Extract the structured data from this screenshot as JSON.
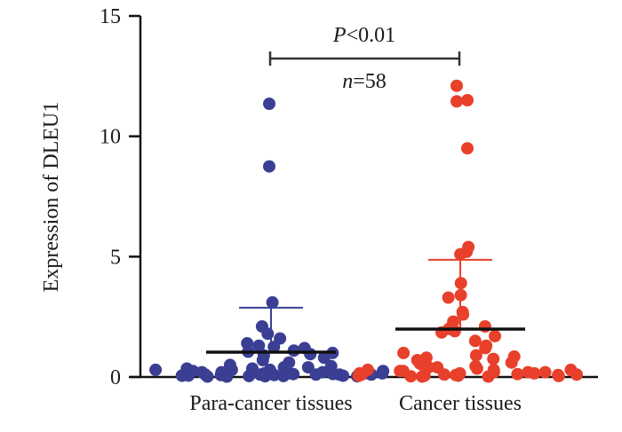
{
  "chart_data": {
    "type": "scatter",
    "subtype": "dot-plot-with-mean-sd",
    "title": "",
    "xlabel": "",
    "ylabel": "Expression of DLEU1",
    "ylim": [
      0,
      15
    ],
    "yticks": [
      0,
      5,
      10,
      15
    ],
    "ytick_labels": [
      "0",
      "5",
      "10",
      "15"
    ],
    "grid": false,
    "legend": "none",
    "categories": [
      "Para-cancer tissues",
      "Cancer tissues"
    ],
    "series": [
      {
        "name": "Para-cancer tissues",
        "color": "#3a3f94",
        "mean": 1.03,
        "sd_upper": 2.88,
        "points": [
          11.35,
          8.75,
          3.1,
          2.1,
          1.8,
          1.6,
          1.4,
          1.3,
          1.25,
          1.2,
          1.1,
          1.05,
          1.0,
          0.95,
          0.9,
          0.8,
          0.7,
          0.6,
          0.5,
          0.45,
          0.4,
          0.4,
          0.35,
          0.35,
          0.3,
          0.3,
          0.3,
          0.25,
          0.25,
          0.25,
          0.2,
          0.2,
          0.2,
          0.2,
          0.15,
          0.15,
          0.15,
          0.15,
          0.12,
          0.12,
          0.1,
          0.1,
          0.1,
          0.1,
          0.1,
          0.08,
          0.08,
          0.06,
          0.06,
          0.05,
          0.05,
          0.05,
          0.04,
          0.04,
          0.03,
          0.03,
          0.02,
          0.02
        ]
      },
      {
        "name": "Cancer tissues",
        "color": "#e8402a",
        "mean": 1.99,
        "sd_upper": 4.87,
        "points": [
          12.1,
          11.5,
          11.45,
          9.5,
          5.4,
          5.2,
          5.1,
          3.9,
          3.4,
          3.3,
          2.7,
          2.6,
          2.3,
          2.1,
          2.0,
          1.9,
          1.85,
          1.7,
          1.5,
          1.3,
          1.2,
          1.0,
          0.9,
          0.85,
          0.8,
          0.75,
          0.7,
          0.6,
          0.55,
          0.5,
          0.45,
          0.4,
          0.4,
          0.35,
          0.3,
          0.3,
          0.3,
          0.25,
          0.25,
          0.2,
          0.2,
          0.2,
          0.15,
          0.15,
          0.15,
          0.12,
          0.1,
          0.1,
          0.1,
          0.08,
          0.08,
          0.06,
          0.05,
          0.05,
          0.04,
          0.03,
          0.02,
          0.02
        ]
      }
    ],
    "annotations": {
      "p_value_italic": "P",
      "p_value_rest": "<0.01",
      "n_italic": "n",
      "n_rest": "=58"
    }
  }
}
